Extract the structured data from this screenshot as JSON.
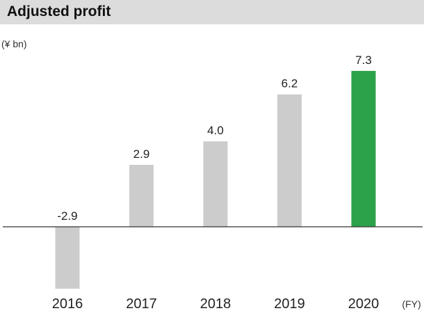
{
  "title": "Adjusted profit",
  "unit_label": "(¥ bn)",
  "x_axis_unit": "(FY)",
  "colors": {
    "title_bar": "#dcdcdc",
    "bar_default": "#cccccc",
    "bar_highlight": "#2ca34a",
    "axis": "#333333"
  },
  "chart_data": {
    "type": "bar",
    "title": "Adjusted profit",
    "ylabel": "(¥ bn)",
    "xlabel": "(FY)",
    "categories": [
      "2016",
      "2017",
      "2018",
      "2019",
      "2020"
    ],
    "values": [
      -2.9,
      2.9,
      4.0,
      6.2,
      7.3
    ],
    "value_labels": [
      "-2.9",
      "2.9",
      "4.0",
      "6.2",
      "7.3"
    ],
    "highlight": "2020",
    "grid": false,
    "legend": "none"
  }
}
